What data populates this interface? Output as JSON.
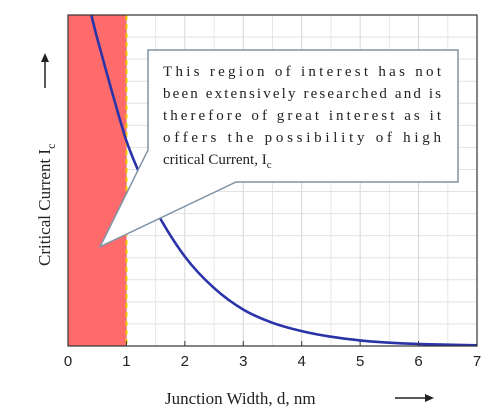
{
  "chart_data": {
    "type": "line",
    "title": "",
    "xlabel": "Junction Width, d, nm",
    "ylabel_main": "Critical Current I",
    "ylabel_sub": "c",
    "xlim": [
      0,
      7
    ],
    "x_ticks": [
      "0",
      "1",
      "2",
      "3",
      "4",
      "5",
      "6",
      "7"
    ],
    "y_ticks_shown": false,
    "grid": true,
    "region": {
      "x_from": 0,
      "x_to": 1,
      "color": "#ff6b6b",
      "boundary_color": "#f2c200"
    },
    "curve": {
      "color": "#2a33a8",
      "points": [
        {
          "x": 0.4,
          "y": 1.0
        },
        {
          "x": 0.5,
          "y": 0.93
        },
        {
          "x": 0.75,
          "y": 0.77
        },
        {
          "x": 1.0,
          "y": 0.62
        },
        {
          "x": 1.25,
          "y": 0.51
        },
        {
          "x": 1.5,
          "y": 0.41
        },
        {
          "x": 2.0,
          "y": 0.27
        },
        {
          "x": 2.5,
          "y": 0.175
        },
        {
          "x": 3.0,
          "y": 0.11
        },
        {
          "x": 3.5,
          "y": 0.07
        },
        {
          "x": 4.0,
          "y": 0.045
        },
        {
          "x": 4.5,
          "y": 0.028
        },
        {
          "x": 5.0,
          "y": 0.017
        },
        {
          "x": 5.5,
          "y": 0.01
        },
        {
          "x": 6.0,
          "y": 0.006
        },
        {
          "x": 6.5,
          "y": 0.004
        },
        {
          "x": 7.0,
          "y": 0.002
        }
      ]
    },
    "annotation": {
      "lines": [
        "This region of interest has not",
        "been extensively researched and is",
        "therefore of great interest as it",
        "offers the possibility of high",
        "critical Current, I"
      ],
      "last_line_subscript": "c",
      "points_to": {
        "x": 0.55,
        "y": 0.3
      }
    }
  }
}
